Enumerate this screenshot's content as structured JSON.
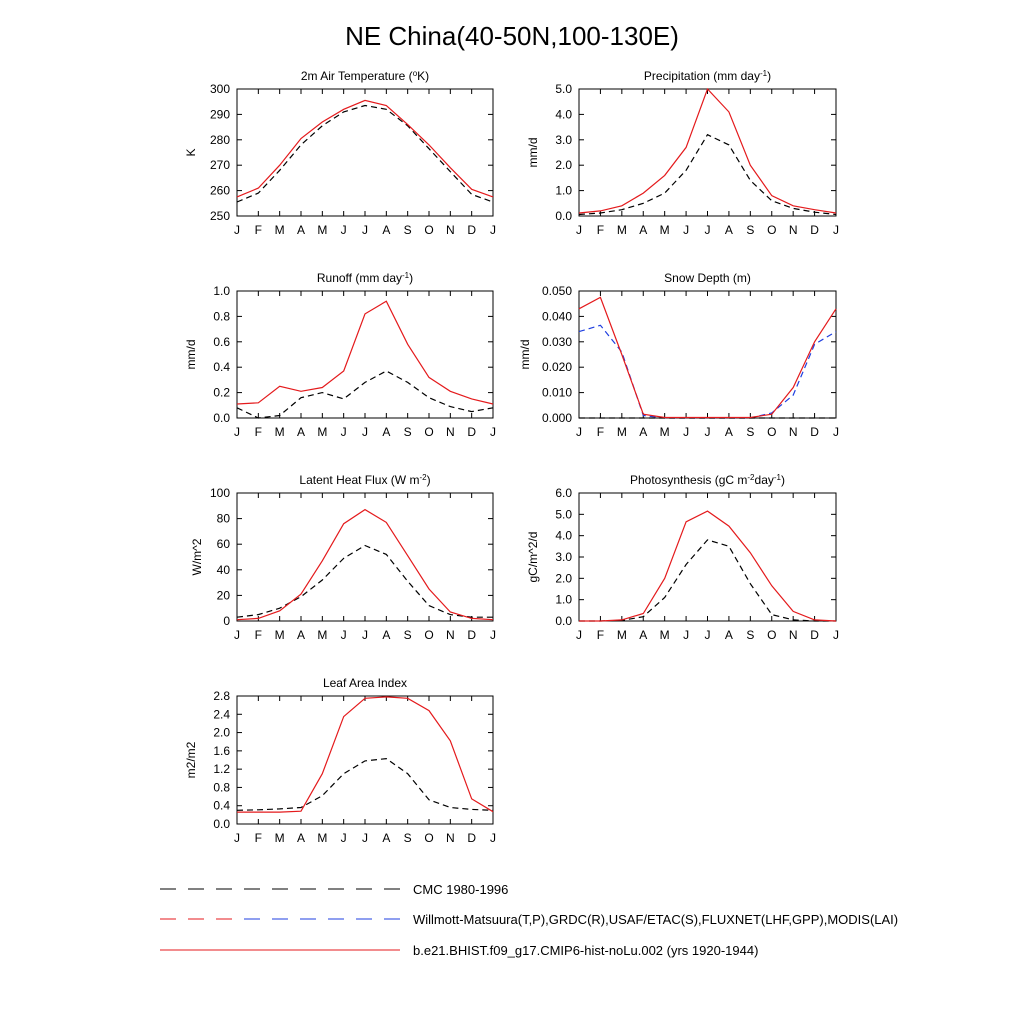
{
  "figure": {
    "title": "NE China(40-50N,100-130E)"
  },
  "months": [
    "J",
    "F",
    "M",
    "A",
    "M",
    "J",
    "J",
    "A",
    "S",
    "O",
    "N",
    "D",
    "J"
  ],
  "legend": {
    "items": [
      {
        "label": "CMC 1980-1996",
        "style": "dash-black"
      },
      {
        "label": "Willmott-Matsuura(T,P),GRDC(R),USAF/ETAC(S),FLUXNET(LHF,GPP),MODIS(LAI)",
        "style": "dash-red-blue"
      },
      {
        "label": "b.e21.BHIST.f09_g17.CMIP6-hist-noLu.002 (yrs 1920-1944)",
        "style": "solid-red"
      }
    ]
  },
  "chart_data": [
    {
      "type": "line",
      "title": "2m Air Temperature (°K)",
      "title_parts": [
        "2m Air Temperature (",
        "o",
        "K)"
      ],
      "ylabel": "K",
      "ylim": [
        250,
        300
      ],
      "yticks": [
        250,
        260,
        270,
        280,
        290,
        300
      ],
      "yticklabels": [
        "250",
        "260",
        "270",
        "280",
        "290",
        "300"
      ],
      "series": [
        {
          "style": "solid-red",
          "color": "#e41a1c",
          "values": [
            257.5,
            261,
            270,
            280.5,
            287,
            292,
            295.5,
            293.5,
            286,
            278,
            269,
            260.5,
            257.5
          ]
        },
        {
          "style": "dash-black",
          "color": "#000000",
          "values": [
            255.5,
            259,
            268,
            278,
            285.5,
            291,
            293.5,
            292,
            285.5,
            276.5,
            267.5,
            258.5,
            255.5
          ]
        }
      ]
    },
    {
      "type": "line",
      "title": "Precipitation (mm day-1)",
      "title_parts": [
        "Precipitation (mm day",
        "-1",
        ")"
      ],
      "ylabel": "mm/d",
      "ylim": [
        0,
        5
      ],
      "yticks": [
        0,
        1,
        2,
        3,
        4,
        5
      ],
      "yticklabels": [
        "0.0",
        "1.0",
        "2.0",
        "3.0",
        "4.0",
        "5.0"
      ],
      "series": [
        {
          "style": "solid-red",
          "color": "#e41a1c",
          "values": [
            0.12,
            0.2,
            0.4,
            0.9,
            1.6,
            2.7,
            5.0,
            4.1,
            2.0,
            0.8,
            0.4,
            0.25,
            0.12
          ]
        },
        {
          "style": "dash-black",
          "color": "#000000",
          "values": [
            0.06,
            0.12,
            0.25,
            0.5,
            0.9,
            1.8,
            3.2,
            2.8,
            1.4,
            0.6,
            0.3,
            0.15,
            0.06
          ]
        }
      ]
    },
    {
      "type": "line",
      "title": "Runoff (mm day-1)",
      "title_parts": [
        "Runoff (mm day",
        "-1",
        ")"
      ],
      "ylabel": "mm/d",
      "ylim": [
        0,
        1
      ],
      "yticks": [
        0,
        0.2,
        0.4,
        0.6,
        0.8,
        1.0
      ],
      "yticklabels": [
        "0.0",
        "0.2",
        "0.4",
        "0.6",
        "0.8",
        "1.0"
      ],
      "series": [
        {
          "style": "solid-red",
          "color": "#e41a1c",
          "values": [
            0.11,
            0.12,
            0.25,
            0.21,
            0.24,
            0.37,
            0.82,
            0.92,
            0.58,
            0.32,
            0.21,
            0.15,
            0.11
          ]
        },
        {
          "style": "dash-black",
          "color": "#000000",
          "values": [
            0.08,
            0.0,
            0.02,
            0.16,
            0.2,
            0.15,
            0.28,
            0.37,
            0.28,
            0.16,
            0.09,
            0.05,
            0.08
          ]
        }
      ]
    },
    {
      "type": "line",
      "title": "Snow Depth (m)",
      "title_parts": [
        "Snow Depth (m)"
      ],
      "ylabel": "mm/d",
      "ylim": [
        0,
        0.05
      ],
      "yticks": [
        0,
        0.01,
        0.02,
        0.03,
        0.04,
        0.05
      ],
      "yticklabels": [
        "0.000",
        "0.010",
        "0.020",
        "0.030",
        "0.040",
        "0.050"
      ],
      "series": [
        {
          "style": "solid-red",
          "color": "#e41a1c",
          "values": [
            0.043,
            0.0475,
            0.025,
            0.0015,
            0.0002,
            0.0002,
            0.0002,
            0.0002,
            0.0002,
            0.0015,
            0.012,
            0.03,
            0.043
          ]
        },
        {
          "style": "dash-blue",
          "color": "#1f3fe0",
          "values": [
            0.034,
            0.0365,
            0.026,
            0.001,
            0.0,
            0.0,
            0.0,
            0.0,
            0.0,
            0.002,
            0.009,
            0.029,
            0.034
          ]
        },
        {
          "style": "dash-black",
          "color": "#000000",
          "values": [
            0,
            0,
            0,
            0,
            0,
            0,
            0,
            0,
            0,
            0,
            0,
            0,
            0
          ]
        }
      ]
    },
    {
      "type": "line",
      "title": "Latent Heat Flux (W m-2)",
      "title_parts": [
        "Latent Heat Flux (W m",
        "-2",
        ")"
      ],
      "ylabel": "W/m^2",
      "ylim": [
        0,
        100
      ],
      "yticks": [
        0,
        20,
        40,
        60,
        80,
        100
      ],
      "yticklabels": [
        "0",
        "20",
        "40",
        "60",
        "80",
        "100"
      ],
      "series": [
        {
          "style": "solid-red",
          "color": "#e41a1c",
          "values": [
            1,
            2,
            8,
            21,
            47,
            76,
            87,
            77,
            51,
            25,
            7,
            2,
            1
          ]
        },
        {
          "style": "dash-black",
          "color": "#000000",
          "values": [
            3,
            5,
            10,
            19,
            32,
            49,
            59,
            52,
            31,
            12,
            5,
            3,
            3
          ]
        }
      ]
    },
    {
      "type": "line",
      "title": "Photosynthesis (gC m-2day-1)",
      "title_parts": [
        "Photosynthesis (gC m",
        "-2",
        "day",
        "-1",
        ")"
      ],
      "ylabel": "gC/m^2/d",
      "ylim": [
        0,
        6
      ],
      "yticks": [
        0,
        1,
        2,
        3,
        4,
        5,
        6
      ],
      "yticklabels": [
        "0.0",
        "1.0",
        "2.0",
        "3.0",
        "4.0",
        "5.0",
        "6.0"
      ],
      "series": [
        {
          "style": "solid-red",
          "color": "#e41a1c",
          "values": [
            0.0,
            0.0,
            0.05,
            0.35,
            2.0,
            4.65,
            5.15,
            4.45,
            3.2,
            1.65,
            0.45,
            0.05,
            0.0
          ]
        },
        {
          "style": "dash-black",
          "color": "#000000",
          "values": [
            0.0,
            0.0,
            0.03,
            0.2,
            1.1,
            2.65,
            3.8,
            3.5,
            1.75,
            0.3,
            0.05,
            0.0,
            0.0
          ]
        }
      ]
    },
    {
      "type": "line",
      "title": "Leaf Area Index",
      "title_parts": [
        "Leaf Area Index"
      ],
      "ylabel": "m2/m2",
      "ylim": [
        0,
        2.8
      ],
      "yticks": [
        0,
        0.4,
        0.8,
        1.2,
        1.6,
        2.0,
        2.4,
        2.8
      ],
      "yticklabels": [
        "0.0",
        "0.4",
        "0.8",
        "1.2",
        "1.6",
        "2.0",
        "2.4",
        "2.8"
      ],
      "series": [
        {
          "style": "solid-red",
          "color": "#e41a1c",
          "values": [
            0.26,
            0.26,
            0.26,
            0.28,
            1.1,
            2.35,
            2.75,
            2.78,
            2.75,
            2.48,
            1.82,
            0.55,
            0.27
          ]
        },
        {
          "style": "dash-black",
          "color": "#000000",
          "values": [
            0.3,
            0.31,
            0.33,
            0.36,
            0.62,
            1.1,
            1.38,
            1.43,
            1.1,
            0.53,
            0.36,
            0.32,
            0.3
          ]
        }
      ]
    }
  ]
}
